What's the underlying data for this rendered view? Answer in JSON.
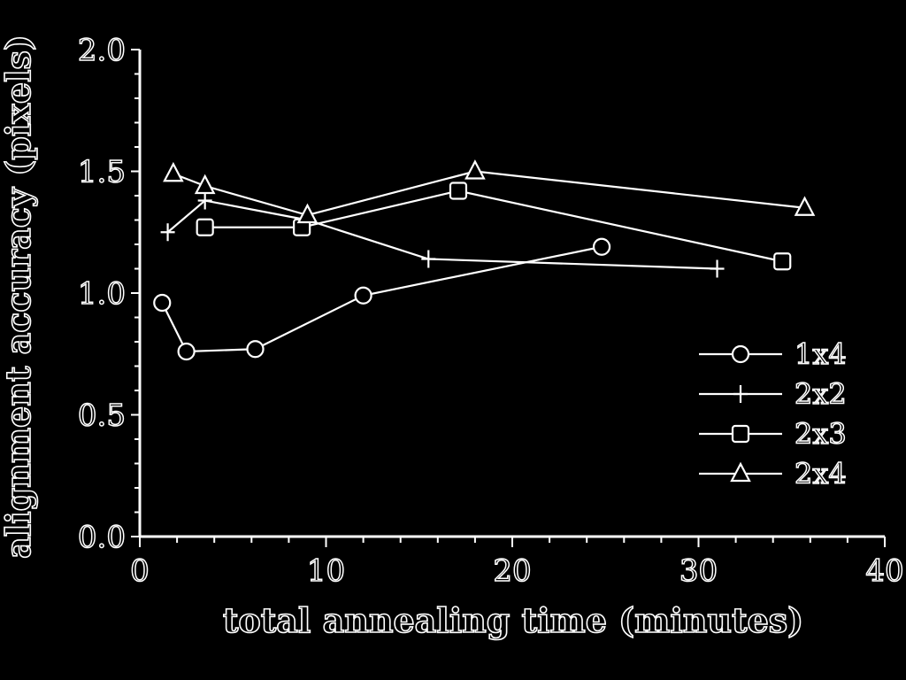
{
  "chart_data": {
    "type": "line",
    "xlabel": "total annealing time (minutes)",
    "ylabel": "alignment accuracy (pixels)",
    "xlim": [
      0,
      40
    ],
    "ylim": [
      0,
      2.0
    ],
    "x_ticks": [
      "0",
      "10",
      "20",
      "30",
      "40"
    ],
    "y_ticks": [
      "0.0",
      "0.5",
      "1.0",
      "1.5",
      "2.0"
    ],
    "grid": false,
    "legend_position": "right",
    "series": [
      {
        "name": "1x4",
        "marker": "circle",
        "points": [
          [
            1.2,
            0.96
          ],
          [
            2.5,
            0.76
          ],
          [
            6.2,
            0.77
          ],
          [
            12.0,
            0.99
          ],
          [
            24.8,
            1.19
          ]
        ]
      },
      {
        "name": "2x2",
        "marker": "plus",
        "points": [
          [
            1.5,
            1.25
          ],
          [
            3.5,
            1.38
          ],
          [
            9.0,
            1.3
          ],
          [
            15.5,
            1.14
          ],
          [
            31.0,
            1.1
          ]
        ]
      },
      {
        "name": "2x3",
        "marker": "square",
        "points": [
          [
            3.5,
            1.27
          ],
          [
            8.7,
            1.27
          ],
          [
            17.1,
            1.42
          ],
          [
            34.5,
            1.13
          ]
        ]
      },
      {
        "name": "2x4",
        "marker": "triangle",
        "points": [
          [
            1.8,
            1.49
          ],
          [
            3.5,
            1.44
          ],
          [
            9.0,
            1.32
          ],
          [
            18.0,
            1.5
          ],
          [
            35.7,
            1.35
          ]
        ]
      }
    ]
  }
}
